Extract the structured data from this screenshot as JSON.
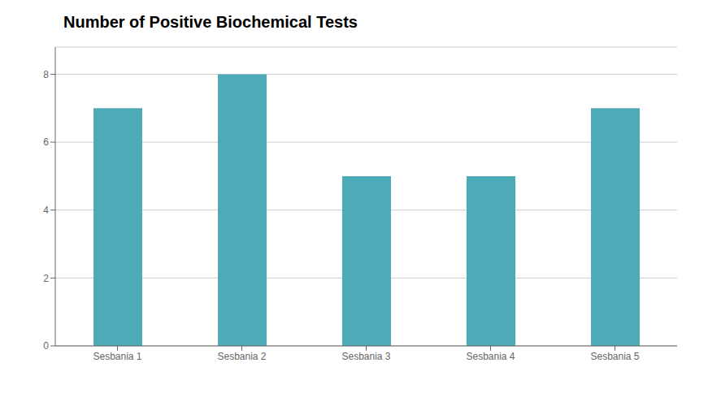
{
  "chart_data": {
    "type": "bar",
    "title": "Number of Positive Biochemical Tests",
    "categories": [
      "Sesbania 1",
      "Sesbania 2",
      "Sesbania 3",
      "Sesbania 4",
      "Sesbania 5"
    ],
    "values": [
      7,
      8,
      5,
      5,
      7
    ],
    "color": "#4DABB8",
    "ylim": [
      0,
      8.8
    ],
    "yticks": [
      0,
      2,
      4,
      6,
      8
    ],
    "grid": true
  }
}
